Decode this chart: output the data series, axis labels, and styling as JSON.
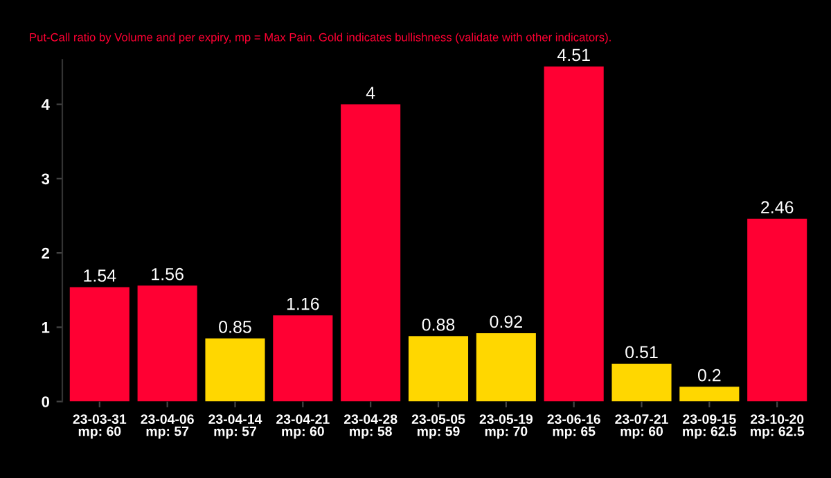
{
  "chart_data": {
    "type": "bar",
    "subtitle": "Put-Call ratio by Volume and per expiry, mp = Max Pain. Gold indicates bullishness (validate with other indicators).",
    "categories": [
      "23-03-31\nmp: 60",
      "23-04-06\nmp: 57",
      "23-04-14\nmp: 57",
      "23-04-21\nmp: 60",
      "23-04-28\nmp: 58",
      "23-05-05\nmp: 59",
      "23-05-19\nmp: 70",
      "23-06-16\nmp: 65",
      "23-07-21\nmp: 60",
      "23-09-15\nmp: 62.5",
      "23-10-20\nmp: 62.5"
    ],
    "values": [
      1.54,
      1.56,
      0.85,
      1.16,
      4,
      0.88,
      0.92,
      4.51,
      0.51,
      0.2,
      2.46
    ],
    "colors": [
      "#ff0033",
      "#ff0033",
      "#ffd700",
      "#ff0033",
      "#ff0033",
      "#ffd700",
      "#ffd700",
      "#ff0033",
      "#ffd700",
      "#ffd700",
      "#ff0033"
    ],
    "data_labels": true,
    "ylim": [
      0,
      4.6
    ],
    "yticks": [
      0,
      1,
      2,
      3,
      4
    ],
    "grid": false,
    "legend": false
  }
}
